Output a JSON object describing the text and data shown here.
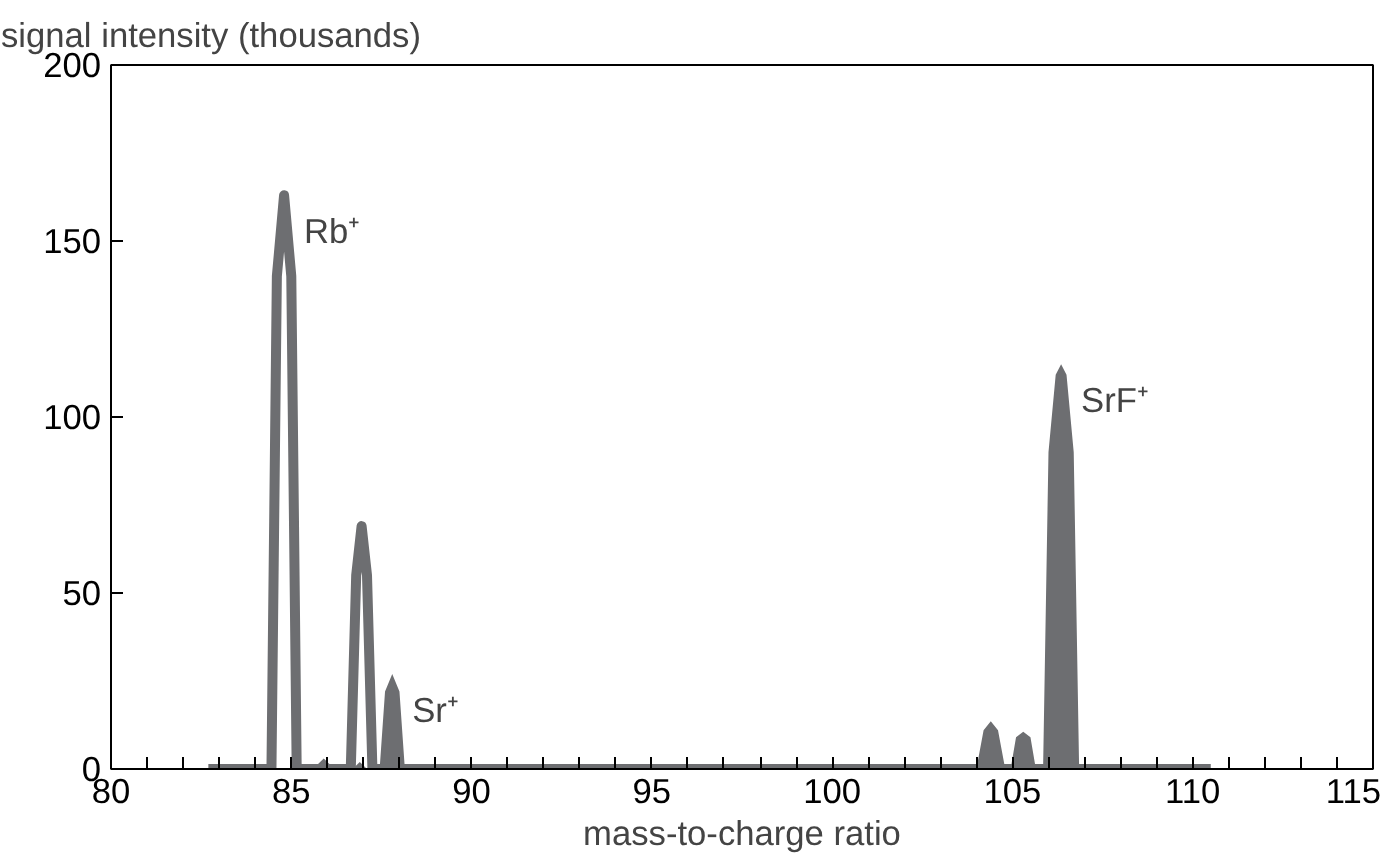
{
  "chart_data": {
    "type": "line",
    "xlabel": "mass-to-charge ratio",
    "ylabel": "signal intensity (thousands)",
    "xlim": [
      80,
      115
    ],
    "ylim": [
      0,
      200
    ],
    "xticks": [
      80,
      {
        "value": 81,
        "label": null
      },
      {
        "value": 82,
        "label": null
      },
      {
        "value": 83,
        "label": null
      },
      {
        "value": 84,
        "label": null
      },
      85,
      {
        "value": 86,
        "label": null
      },
      {
        "value": 87,
        "label": null
      },
      {
        "value": 88,
        "label": null
      },
      {
        "value": 89,
        "label": null
      },
      90,
      {
        "value": 91,
        "label": null
      },
      {
        "value": 92,
        "label": null
      },
      {
        "value": 93,
        "label": null
      },
      {
        "value": 94,
        "label": null
      },
      95,
      {
        "value": 96,
        "label": null
      },
      {
        "value": 97,
        "label": null
      },
      {
        "value": 98,
        "label": null
      },
      {
        "value": 99,
        "label": null
      },
      100,
      {
        "value": 101,
        "label": null
      },
      {
        "value": 102,
        "label": null
      },
      {
        "value": 103,
        "label": null
      },
      {
        "value": 104,
        "label": null
      },
      105,
      {
        "value": 106,
        "label": null
      },
      {
        "value": 107,
        "label": null
      },
      {
        "value": 108,
        "label": null
      },
      {
        "value": 109,
        "label": null
      },
      110,
      {
        "value": 111,
        "label": null
      },
      {
        "value": 112,
        "label": null
      },
      {
        "value": 113,
        "label": null
      },
      {
        "value": 114,
        "label": null
      },
      115
    ],
    "yticks": [
      0,
      50,
      100,
      150,
      200
    ],
    "grid": false,
    "marker": "none",
    "line_style": "solid",
    "series": [
      {
        "type": "area",
        "color": "#6d6e71",
        "x": [
          85.6,
          85.9,
          86.2,
          86.7,
          86.9,
          87.1,
          87.45,
          87.6,
          87.8,
          88.0,
          88.15,
          104.0,
          104.2,
          104.4,
          104.6,
          104.8,
          104.95,
          105.1,
          105.3,
          105.5,
          105.65,
          105.85,
          106.0,
          106.2,
          106.35,
          106.5,
          106.7,
          106.85
        ],
        "values": [
          0,
          3,
          0,
          0,
          2,
          0,
          0,
          22,
          27,
          22,
          0,
          0,
          11,
          13.6,
          11,
          0,
          0,
          9,
          10.6,
          9,
          0,
          0,
          90,
          112,
          115,
          112,
          90,
          0
        ]
      },
      {
        "color": "#6d6e71",
        "x": [
          82.7,
          84.45,
          84.6,
          84.8,
          85.0,
          85.15,
          86.65,
          86.8,
          86.95,
          87.1,
          87.25,
          110.5
        ],
        "values": [
          0,
          0,
          140,
          163,
          140,
          0,
          0,
          55,
          69,
          55,
          0,
          0
        ]
      }
    ],
    "annotations": [
      {
        "text": "Rb⁺",
        "x": 84.8,
        "y": 163
      },
      {
        "text": "Sr⁺",
        "x": 87.8,
        "y": 27
      },
      {
        "text": "SrF⁺",
        "x": 106.35,
        "y": 115
      }
    ]
  }
}
